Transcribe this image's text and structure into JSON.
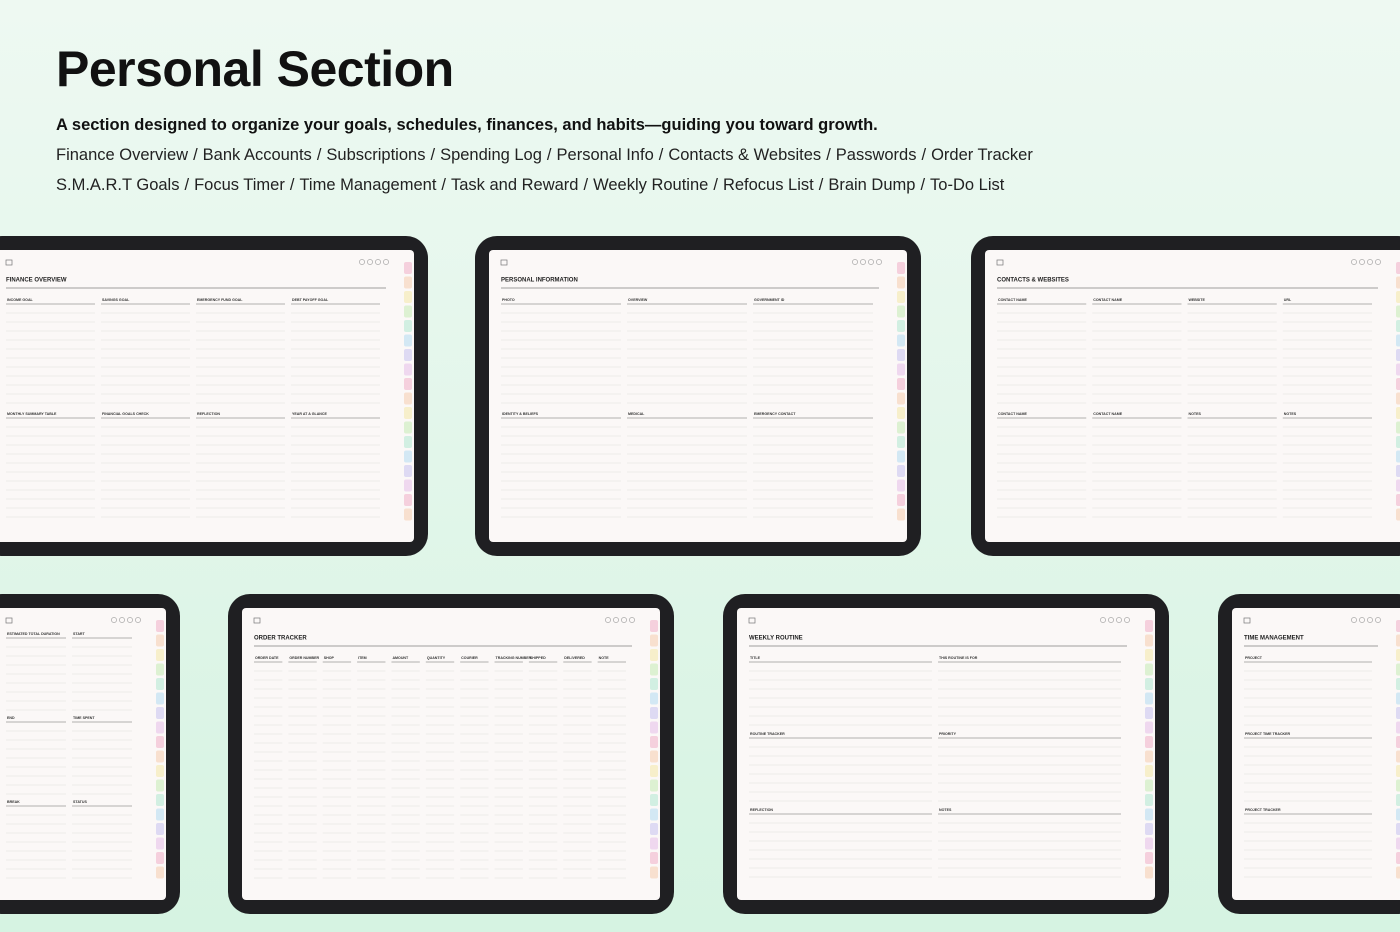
{
  "header": {
    "title": "Personal Section",
    "subtitle": "A section designed to organize your goals, schedules, finances, and habits—guiding you toward growth.",
    "separator": "/",
    "list_1": [
      "Finance Overview",
      "Bank Accounts",
      "Subscriptions",
      "Spending Log",
      "Personal Info",
      "Contacts & Websites",
      "Passwords",
      "Order Tracker"
    ],
    "list_2": [
      "S.M.A.R.T Goals",
      "Focus Timer",
      "Time Management",
      "Task and Reward",
      "Weekly Routine",
      "Refocus List",
      "Brain Dump",
      "To-Do List"
    ]
  },
  "screens": [
    {
      "title": "FINANCE OVERVIEW",
      "cols": 4,
      "labels": [
        "INCOME GOAL",
        "SAVINGS GOAL",
        "EMERGENCY FUND GOAL",
        "DEBT PAYOFF GOAL",
        "MONTHLY SUMMARY TABLE",
        "FINANCIAL GOALS CHECK",
        "REFLECTION",
        "YEAR AT A GLANCE"
      ]
    },
    {
      "title": "PERSONAL INFORMATION",
      "cols": 3,
      "labels": [
        "PHOTO",
        "OVERVIEW",
        "GOVERNMENT ID",
        "IDENTITY & BELIEFS",
        "MEDICAL",
        "EMERGENCY CONTACT"
      ]
    },
    {
      "title": "CONTACTS & WEBSITES",
      "cols": 4,
      "labels": [
        "CONTACT NAME",
        "CONTACT NAME",
        "WEBSITE",
        "URL",
        "CONTACT NAME",
        "CONTACT NAME",
        "NOTES",
        "NOTES"
      ]
    },
    {
      "cols": 2,
      "labels": [
        "ESTIMATED TOTAL DURATION",
        "START",
        "END",
        "TIME SPENT",
        "BREAK",
        "STATUS"
      ]
    },
    {
      "title": "ORDER TRACKER",
      "cols": 11,
      "labels": [
        "ORDER DATE",
        "ORDER NUMBER",
        "SHOP",
        "ITEM",
        "AMOUNT",
        "QUANTITY",
        "COURIER",
        "TRACKING NUMBER",
        "SHIPPED",
        "DELIVERED",
        "NOTE"
      ]
    },
    {
      "title": "WEEKLY ROUTINE",
      "cols": 2,
      "labels": [
        "TITLE",
        "THIS ROUTINE IS FOR",
        "ROUTINE TRACKER",
        "PRIORITY",
        "REFLECTION",
        "NOTES"
      ]
    },
    {
      "title": "TIME MANAGEMENT",
      "cols": 1,
      "labels": [
        "PROJECT",
        "PROJECT TIME TRACKER",
        "PROJECT TRACKER"
      ]
    }
  ]
}
